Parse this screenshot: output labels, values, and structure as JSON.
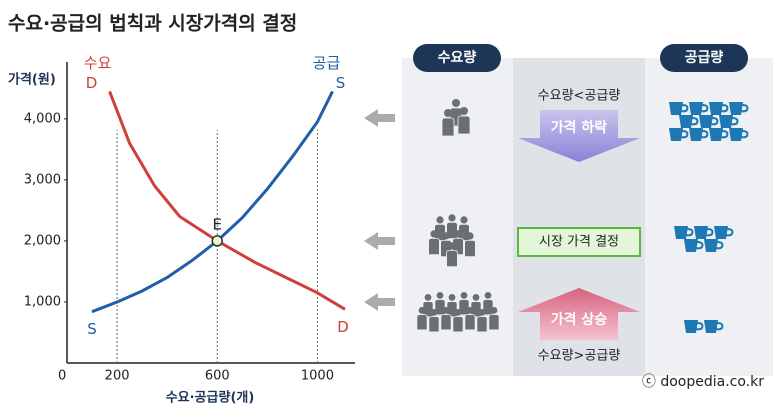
{
  "chart_data": {
    "type": "line",
    "title": "수요·공급의 법칙과 시장가격의 결정",
    "y_label": "가격(원)",
    "x_label": "수요·공급량(개)",
    "origin_label": "0",
    "xlim": [
      0,
      1150
    ],
    "ylim": [
      0,
      4800
    ],
    "xticks": [
      200,
      600,
      1000
    ],
    "yticks": [
      {
        "value": 1000,
        "label": "1,000"
      },
      {
        "value": 2000,
        "label": "2,000"
      },
      {
        "value": 3000,
        "label": "3,000"
      },
      {
        "value": 4000,
        "label": "4,000"
      }
    ],
    "series": [
      {
        "name": "수요",
        "end_label": "D",
        "color": "#d0403a",
        "x": [
          170,
          250,
          350,
          450,
          600,
          750,
          900,
          1000,
          1110
        ],
        "values": [
          4450,
          3600,
          2900,
          2400,
          2000,
          1650,
          1350,
          1150,
          880
        ]
      },
      {
        "name": "공급",
        "end_label": "S",
        "color": "#1f5ea8",
        "x": [
          100,
          200,
          300,
          400,
          500,
          600,
          700,
          800,
          900,
          1000,
          1060
        ],
        "values": [
          840,
          1000,
          1180,
          1400,
          1680,
          2000,
          2380,
          2850,
          3380,
          3950,
          4450
        ]
      }
    ],
    "annotations": [
      {
        "label": "E",
        "x": 600,
        "y": 2000
      }
    ]
  },
  "diagram": {
    "columns": [
      "수요량",
      "공급량"
    ],
    "rows": [
      {
        "condition": "수요량<공급량",
        "result": "가격 하락"
      },
      {
        "result": "시장 가격 결정"
      },
      {
        "condition": "수요량>공급량",
        "result": "가격 상승"
      }
    ],
    "credit": "ⓒ doopedia.co.kr"
  }
}
